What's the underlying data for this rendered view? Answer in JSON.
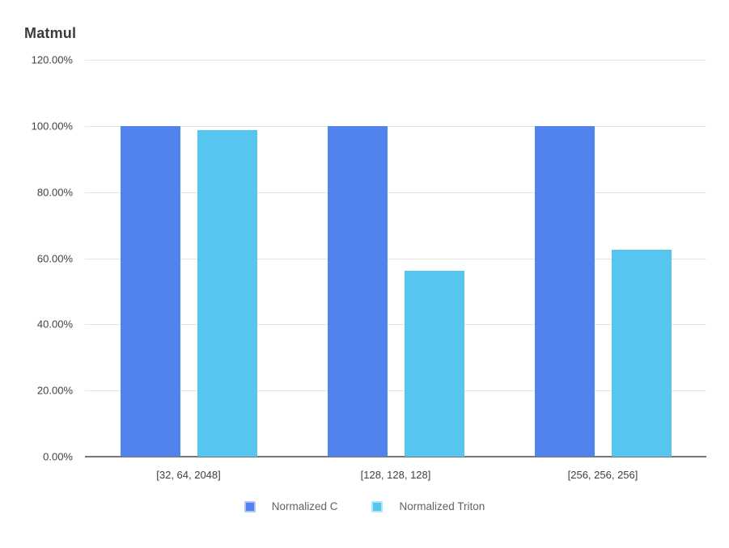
{
  "chart_data": {
    "type": "bar",
    "title": "Matmul",
    "categories": [
      "[32, 64, 2048]",
      "[128, 128, 128]",
      "[256, 256, 256]"
    ],
    "series": [
      {
        "name": "Normalized C",
        "color": "#5282EC",
        "values": [
          100.0,
          100.0,
          100.0
        ]
      },
      {
        "name": "Normalized Triton",
        "color": "#56C5F0",
        "values": [
          98.8,
          56.2,
          62.5
        ]
      }
    ],
    "xlabel": "",
    "ylabel": "",
    "ylim": [
      0,
      120
    ],
    "y_ticks": [
      {
        "value": 120,
        "label": "120.00%"
      },
      {
        "value": 100,
        "label": "100.00%"
      },
      {
        "value": 80,
        "label": "80.00%"
      },
      {
        "value": 60,
        "label": "60.00%"
      },
      {
        "value": 40,
        "label": "40.00%"
      },
      {
        "value": 20,
        "label": "20.00%"
      },
      {
        "value": 0,
        "label": "0.00%"
      }
    ],
    "grid": true,
    "legend_position": "bottom"
  },
  "colors": {
    "background": "#ffffff",
    "gridline": "#e4e4e4",
    "axis_line": "#767676",
    "title_text": "#3b3b3b",
    "tick_text": "#424242",
    "category_text": "#3c4043",
    "legend_text": "#5f6368"
  }
}
